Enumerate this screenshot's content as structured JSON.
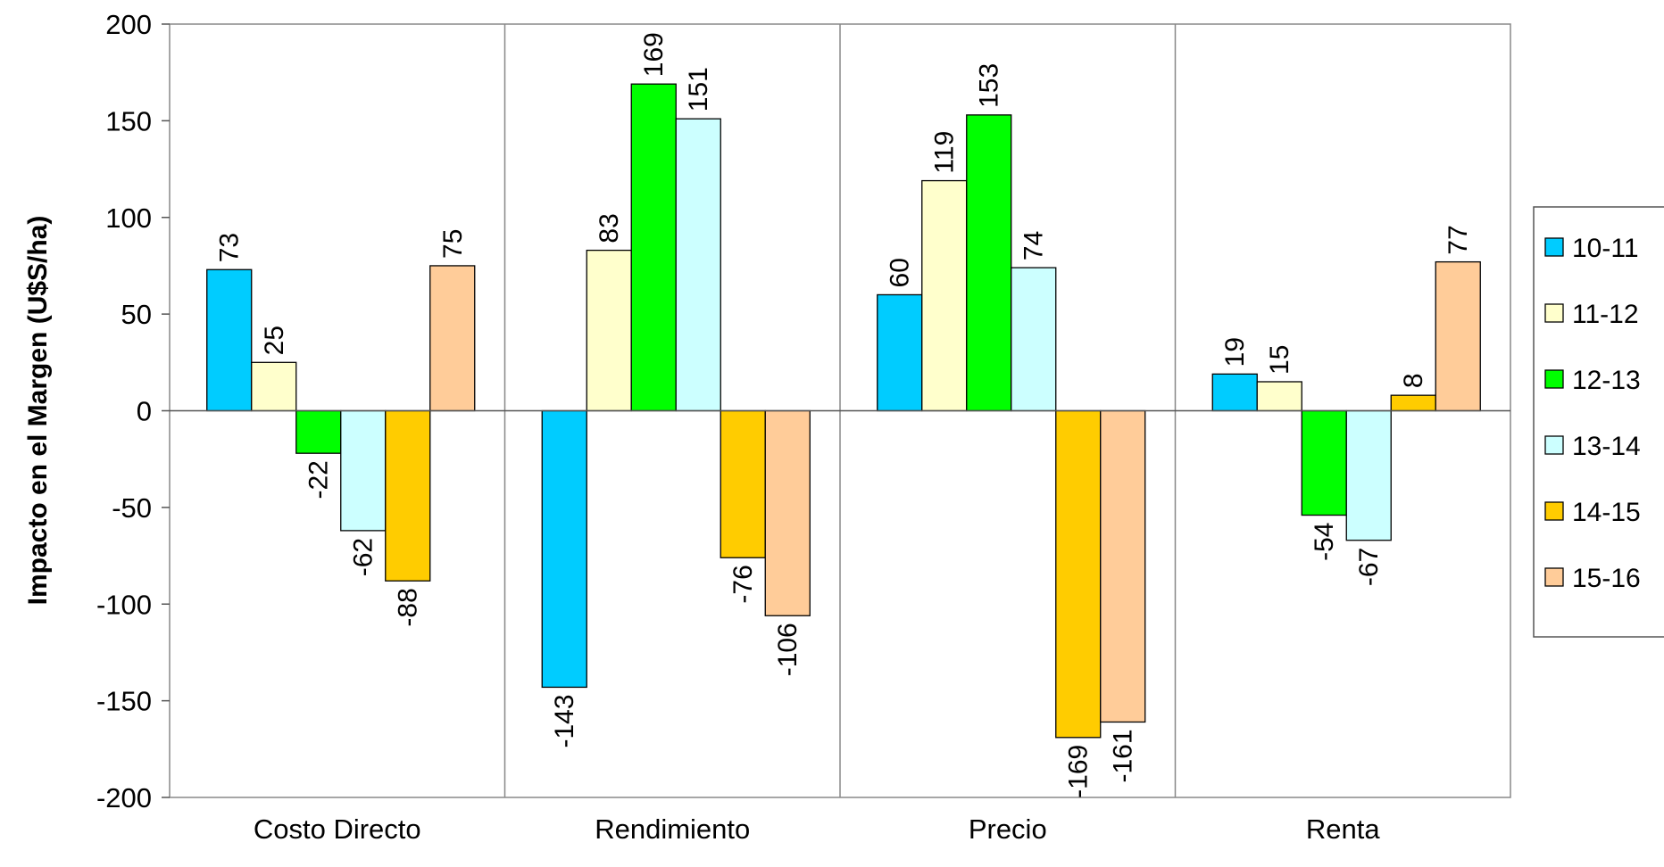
{
  "chart_data": {
    "type": "bar",
    "title": "",
    "xlabel": "",
    "ylabel": "Impacto en el Margen (U$S/ha)",
    "ylim": [
      -200,
      200
    ],
    "yticks": [
      200,
      150,
      100,
      50,
      0,
      -50,
      -100,
      -150,
      -200
    ],
    "grid": false,
    "legend_position": "right",
    "categories": [
      "Costo Directo",
      "Rendimiento",
      "Precio",
      "Renta"
    ],
    "series": [
      {
        "name": "10-11",
        "color": "#00CCFF",
        "values": [
          73,
          -143,
          60,
          19
        ]
      },
      {
        "name": "11-12",
        "color": "#FFFFCC",
        "values": [
          25,
          83,
          119,
          15
        ]
      },
      {
        "name": "12-13",
        "color": "#00FF00",
        "values": [
          -22,
          169,
          153,
          -54
        ]
      },
      {
        "name": "13-14",
        "color": "#CCFFFF",
        "values": [
          -62,
          151,
          74,
          -67
        ]
      },
      {
        "name": "14-15",
        "color": "#FFCC00",
        "values": [
          -88,
          -76,
          -169,
          8
        ]
      },
      {
        "name": "15-16",
        "color": "#FFCC99",
        "values": [
          75,
          -106,
          -161,
          77
        ]
      }
    ]
  }
}
